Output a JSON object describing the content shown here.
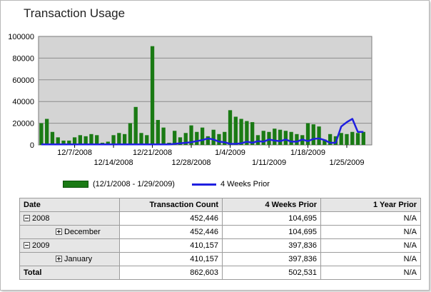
{
  "page": {
    "title": "Transaction Usage"
  },
  "chart_data": {
    "type": "bar",
    "ylim": [
      0,
      100000
    ],
    "yticks": [
      0,
      20000,
      40000,
      60000,
      80000,
      100000
    ],
    "x_start": "2008-12-01",
    "x_end": "2009-01-29",
    "xticks": [
      {
        "date": "2008-12-07",
        "label": "12/7/2008"
      },
      {
        "date": "2008-12-14",
        "label": "12/14/2008"
      },
      {
        "date": "2008-12-21",
        "label": "12/21/2008"
      },
      {
        "date": "2008-12-28",
        "label": "12/28/2008"
      },
      {
        "date": "2009-01-04",
        "label": "1/4/2009"
      },
      {
        "date": "2009-01-11",
        "label": "1/11/2009"
      },
      {
        "date": "2009-01-18",
        "label": "1/18/2009"
      },
      {
        "date": "2009-01-25",
        "label": "1/25/2009"
      }
    ],
    "series": [
      {
        "name": "(12/1/2008 - 1/29/2009)",
        "type": "bar",
        "color": "#1a7a14",
        "values": [
          20000,
          24000,
          12000,
          7000,
          4000,
          4000,
          7000,
          9000,
          8000,
          10000,
          9000,
          2000,
          3000,
          9000,
          11000,
          10000,
          20000,
          35000,
          11000,
          9000,
          91000,
          23000,
          16000,
          2000,
          13000,
          7000,
          11000,
          18000,
          12000,
          16000,
          8000,
          14000,
          10000,
          12000,
          32000,
          26000,
          24000,
          22000,
          21000,
          9000,
          13000,
          12000,
          15000,
          14000,
          13000,
          12000,
          10000,
          9000,
          20000,
          19000,
          17000,
          5000,
          10000,
          8000,
          11000,
          10000,
          12000,
          11000,
          12000
        ]
      },
      {
        "name": "4 Weeks Prior",
        "type": "line",
        "color": "#1f1fe0",
        "values": [
          500,
          500,
          500,
          500,
          500,
          500,
          500,
          500,
          500,
          500,
          500,
          500,
          500,
          500,
          500,
          500,
          500,
          500,
          500,
          500,
          500,
          500,
          500,
          500,
          1000,
          1500,
          2000,
          2500,
          3500,
          4500,
          6000,
          5000,
          3000,
          2500,
          1000,
          1000,
          1500,
          3000,
          2000,
          3500,
          3000,
          5000,
          4000,
          3500,
          5000,
          3000,
          3000,
          5000,
          3500,
          5500,
          6000,
          4500,
          2000,
          2000,
          17000,
          21000,
          24000,
          12000,
          12000
        ]
      }
    ]
  },
  "legend": {
    "bar_label": "(12/1/2008 - 1/29/2009)",
    "line_label": "4 Weeks Prior"
  },
  "table": {
    "headers": {
      "date": "Date",
      "count": "Transaction Count",
      "prior4": "4 Weeks Prior",
      "prior1y": "1 Year Prior"
    },
    "rows": [
      {
        "label": "2008",
        "count": "452,446",
        "prior4": "104,695",
        "prior1y": "N/A"
      },
      {
        "label": "December",
        "count": "452,446",
        "prior4": "104,695",
        "prior1y": "N/A"
      },
      {
        "label": "2009",
        "count": "410,157",
        "prior4": "397,836",
        "prior1y": "N/A"
      },
      {
        "label": "January",
        "count": "410,157",
        "prior4": "397,836",
        "prior1y": "N/A"
      }
    ],
    "total": {
      "label": "Total",
      "count": "862,603",
      "prior4": "502,531",
      "prior1y": "N/A"
    }
  }
}
